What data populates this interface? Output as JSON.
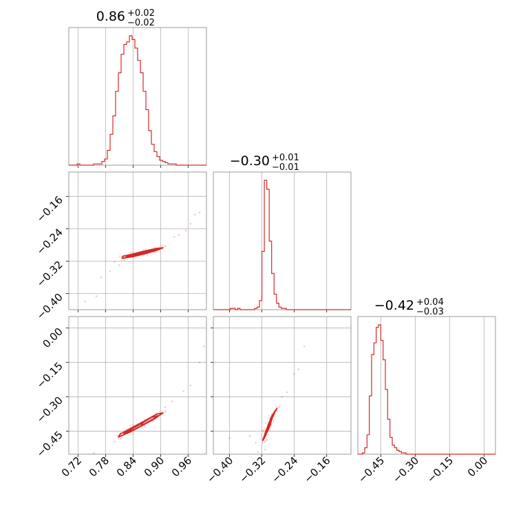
{
  "chart_data": {
    "type": "corner",
    "color": "#d62728",
    "grid": true,
    "parameters": [
      {
        "title": {
          "value": "0.86",
          "plus": "+0.02",
          "minus": "−0.02"
        },
        "range": [
          0.7,
          1.0
        ],
        "ticks": [
          0.72,
          0.78,
          0.84,
          0.9,
          0.96
        ],
        "tick_labels": [
          "0.72",
          "0.78",
          "0.84",
          "0.90",
          "0.96"
        ],
        "hist": {
          "bins": [
            0.7,
            0.706,
            0.712,
            0.718,
            0.724,
            0.73,
            0.736,
            0.742,
            0.748,
            0.754,
            0.76,
            0.766,
            0.772,
            0.778,
            0.784,
            0.79,
            0.796,
            0.802,
            0.808,
            0.814,
            0.82,
            0.826,
            0.832,
            0.838,
            0.844,
            0.85,
            0.856,
            0.862,
            0.868,
            0.874,
            0.88,
            0.886,
            0.892,
            0.898,
            0.904,
            0.91,
            0.916,
            0.922,
            0.928,
            0.934,
            0.94,
            0.946,
            0.952,
            0.958,
            0.964,
            0.97,
            0.976,
            0.982,
            0.988,
            0.994,
            1.0
          ],
          "counts": [
            0,
            0,
            0,
            1,
            0,
            0,
            0,
            0,
            0,
            1,
            1,
            1,
            3,
            5,
            12,
            25,
            40,
            60,
            75,
            90,
            98,
            100,
            105,
            102,
            95,
            85,
            75,
            60,
            45,
            28,
            17,
            11,
            7,
            4,
            3,
            2,
            1,
            1,
            1,
            0,
            0,
            0,
            0,
            0,
            0,
            0,
            0,
            0,
            0,
            0
          ]
        }
      },
      {
        "title": {
          "value": "−0.30",
          "plus": "+0.01",
          "minus": "−0.01"
        },
        "range": [
          -0.44,
          -0.1
        ],
        "ticks": [
          -0.4,
          -0.32,
          -0.24,
          -0.16
        ],
        "tick_labels": [
          "−0.40",
          "−0.32",
          "−0.24",
          "−0.16"
        ],
        "hist": {
          "bins": [
            -0.44,
            -0.434,
            -0.428,
            -0.422,
            -0.416,
            -0.41,
            -0.404,
            -0.398,
            -0.392,
            -0.386,
            -0.38,
            -0.374,
            -0.368,
            -0.362,
            -0.356,
            -0.35,
            -0.344,
            -0.338,
            -0.332,
            -0.326,
            -0.32,
            -0.314,
            -0.308,
            -0.302,
            -0.296,
            -0.29,
            -0.284,
            -0.278,
            -0.272,
            -0.266,
            -0.26,
            -0.254,
            -0.248,
            -0.242,
            -0.236,
            -0.23,
            -0.224,
            -0.218,
            -0.212,
            -0.206,
            -0.2,
            -0.194,
            -0.188,
            -0.182,
            -0.176,
            -0.17,
            -0.164,
            -0.158,
            -0.152,
            -0.146,
            -0.14,
            -0.134,
            -0.128,
            -0.122,
            -0.116,
            -0.11,
            -0.104,
            -0.1
          ],
          "counts": [
            0,
            0,
            0,
            0,
            0,
            0,
            0,
            1,
            1,
            0,
            1,
            0,
            0,
            0,
            0,
            0,
            0,
            1,
            2,
            7,
            45,
            100,
            93,
            53,
            28,
            12,
            5,
            2,
            1,
            1,
            0,
            0,
            0,
            0,
            0,
            0,
            0,
            0,
            0,
            0,
            0,
            0,
            0,
            0,
            0,
            0,
            0,
            0,
            0,
            0,
            0,
            0,
            0,
            0,
            0,
            0,
            0
          ]
        }
      },
      {
        "title": {
          "value": "−0.42",
          "plus": "+0.04",
          "minus": "−0.03"
        },
        "range": [
          -0.55,
          0.05
        ],
        "ticks": [
          -0.45,
          -0.3,
          -0.15,
          0.0
        ],
        "tick_labels": [
          "−0.45",
          "−0.30",
          "−0.15",
          "0.00"
        ],
        "y_ticks": [
          0.0,
          -0.15,
          -0.3,
          -0.45
        ],
        "y_tick_labels": [
          "0.00",
          "−0.15",
          "−0.30",
          "−0.45"
        ],
        "hist": {
          "bins": [
            -0.55,
            -0.54,
            -0.53,
            -0.52,
            -0.51,
            -0.5,
            -0.49,
            -0.48,
            -0.47,
            -0.46,
            -0.45,
            -0.44,
            -0.43,
            -0.42,
            -0.41,
            -0.4,
            -0.39,
            -0.38,
            -0.37,
            -0.36,
            -0.35,
            -0.34,
            -0.33,
            -0.32,
            -0.31,
            -0.3,
            -0.29,
            -0.28,
            -0.27,
            -0.26,
            -0.25,
            -0.24,
            -0.23,
            -0.22,
            -0.21,
            -0.2,
            -0.19,
            -0.18,
            -0.17,
            -0.16,
            -0.15,
            -0.14,
            -0.13,
            -0.12,
            -0.11,
            -0.1,
            -0.09,
            -0.08,
            -0.07,
            -0.06,
            -0.05,
            -0.04,
            -0.03,
            -0.02,
            -0.01,
            0.0,
            0.01,
            0.02,
            0.03,
            0.04,
            0.05
          ],
          "counts": [
            0,
            0,
            1,
            5,
            15,
            45,
            77,
            86,
            98,
            100,
            88,
            73,
            50,
            27,
            13,
            7,
            5,
            3,
            2,
            1,
            1,
            0,
            0,
            0,
            0,
            0,
            0,
            0,
            0,
            0,
            0,
            0,
            0,
            0,
            0,
            0,
            0,
            0,
            0,
            0,
            0,
            0,
            0,
            0,
            0,
            0,
            0,
            0,
            0,
            0,
            0,
            0,
            0,
            0,
            0,
            0,
            0,
            0,
            0,
            0
          ]
        }
      }
    ],
    "pairs": [
      {
        "x_param": 0,
        "y_param": 1,
        "center": [
          0.86,
          -0.3
        ],
        "contours": [
          [
            [
              0.825,
              -0.309
            ],
            [
              0.845,
              -0.306
            ],
            [
              0.865,
              -0.3
            ],
            [
              0.885,
              -0.294
            ],
            [
              0.897,
              -0.29
            ],
            [
              0.885,
              -0.292
            ],
            [
              0.865,
              -0.297
            ],
            [
              0.845,
              -0.303
            ],
            [
              0.83,
              -0.307
            ]
          ],
          [
            [
              0.816,
              -0.313
            ],
            [
              0.84,
              -0.309
            ],
            [
              0.865,
              -0.302
            ],
            [
              0.89,
              -0.294
            ],
            [
              0.905,
              -0.287
            ],
            [
              0.89,
              -0.289
            ],
            [
              0.862,
              -0.296
            ],
            [
              0.838,
              -0.303
            ],
            [
              0.818,
              -0.308
            ]
          ]
        ],
        "outliers": [
          [
            0.735,
            -0.42
          ],
          [
            0.76,
            -0.407
          ],
          [
            0.975,
            -0.205
          ],
          [
            0.985,
            -0.2
          ],
          [
            0.93,
            -0.26
          ],
          [
            0.77,
            -0.36
          ],
          [
            0.79,
            -0.345
          ],
          [
            0.81,
            -0.33
          ],
          [
            0.8,
            -0.322
          ],
          [
            0.94,
            -0.255
          ],
          [
            0.955,
            -0.245
          ],
          [
            0.965,
            -0.228
          ]
        ]
      },
      {
        "x_param": 0,
        "y_param": 2,
        "center": [
          0.86,
          -0.42
        ],
        "contours": [
          [
            [
              0.82,
              -0.46
            ],
            [
              0.845,
              -0.44
            ],
            [
              0.865,
              -0.418
            ],
            [
              0.885,
              -0.395
            ],
            [
              0.895,
              -0.382
            ],
            [
              0.88,
              -0.39
            ],
            [
              0.86,
              -0.415
            ],
            [
              0.84,
              -0.437
            ],
            [
              0.822,
              -0.455
            ]
          ],
          [
            [
              0.808,
              -0.475
            ],
            [
              0.835,
              -0.452
            ],
            [
              0.86,
              -0.425
            ],
            [
              0.885,
              -0.398
            ],
            [
              0.905,
              -0.37
            ],
            [
              0.892,
              -0.375
            ],
            [
              0.865,
              -0.405
            ],
            [
              0.84,
              -0.432
            ],
            [
              0.812,
              -0.462
            ]
          ]
        ],
        "outliers": [
          [
            0.8,
            -0.495
          ],
          [
            0.755,
            -0.545
          ],
          [
            0.91,
            -0.345
          ],
          [
            0.925,
            -0.32
          ],
          [
            0.95,
            -0.275
          ],
          [
            0.965,
            -0.25
          ],
          [
            0.985,
            -0.15
          ],
          [
            0.995,
            -0.08
          ]
        ]
      },
      {
        "x_param": 1,
        "y_param": 2,
        "center": [
          -0.3,
          -0.42
        ],
        "contours": [
          [
            [
              -0.311,
              -0.47
            ],
            [
              -0.306,
              -0.44
            ],
            [
              -0.302,
              -0.42
            ],
            [
              -0.298,
              -0.4
            ],
            [
              -0.292,
              -0.378
            ],
            [
              -0.295,
              -0.395
            ],
            [
              -0.299,
              -0.418
            ],
            [
              -0.303,
              -0.44
            ],
            [
              -0.31,
              -0.462
            ]
          ],
          [
            [
              -0.318,
              -0.49
            ],
            [
              -0.311,
              -0.455
            ],
            [
              -0.304,
              -0.42
            ],
            [
              -0.296,
              -0.385
            ],
            [
              -0.283,
              -0.35
            ],
            [
              -0.289,
              -0.37
            ],
            [
              -0.298,
              -0.408
            ],
            [
              -0.306,
              -0.445
            ],
            [
              -0.314,
              -0.48
            ]
          ]
        ],
        "outliers": [
          [
            -0.4,
            -0.48
          ],
          [
            -0.335,
            -0.5
          ],
          [
            -0.35,
            -0.47
          ],
          [
            -0.33,
            -0.54
          ],
          [
            -0.27,
            -0.3
          ],
          [
            -0.258,
            -0.28
          ],
          [
            -0.24,
            -0.2
          ],
          [
            -0.23,
            -0.18
          ],
          [
            -0.215,
            -0.08
          ],
          [
            -0.312,
            -0.53
          ]
        ]
      }
    ]
  }
}
